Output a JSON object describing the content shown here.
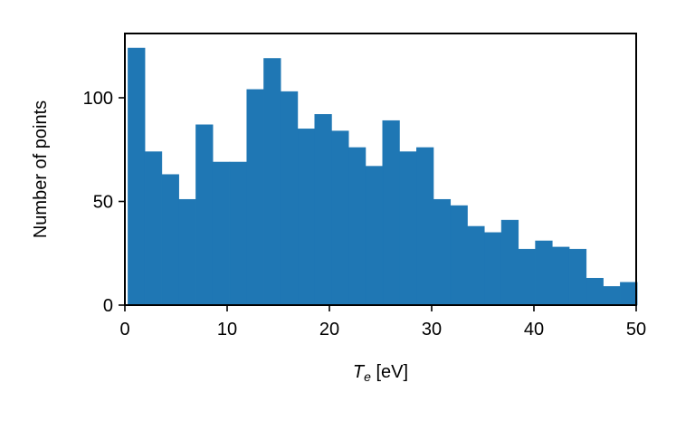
{
  "chart_data": {
    "type": "bar",
    "title": "",
    "xlabel": {
      "main": "T",
      "sub": "e",
      "unit": " [eV]"
    },
    "ylabel": "Number of points",
    "xlim": [
      0,
      50
    ],
    "ylim": [
      0,
      131
    ],
    "xticks": [
      "0",
      "10",
      "20",
      "30",
      "40",
      "50"
    ],
    "yticks": [
      "0",
      "50",
      "100"
    ],
    "grid": false,
    "legend": "none",
    "bar_color": "#1f77b4",
    "bin_edges": [
      0.3,
      1.96,
      3.62,
      5.28,
      6.94,
      8.6,
      10.26,
      11.92,
      13.58,
      15.24,
      16.9,
      18.56,
      20.22,
      21.88,
      23.54,
      25.2,
      26.86,
      28.52,
      30.18,
      31.84,
      33.5,
      35.16,
      36.82,
      38.48,
      40.14,
      41.8,
      43.46,
      45.12,
      46.78,
      48.44,
      50.1
    ],
    "values": [
      124,
      74,
      63,
      51,
      87,
      69,
      69,
      104,
      119,
      103,
      85,
      92,
      84,
      76,
      67,
      89,
      74,
      76,
      51,
      48,
      38,
      35,
      41,
      27,
      31,
      28,
      27,
      13,
      9,
      11
    ]
  }
}
